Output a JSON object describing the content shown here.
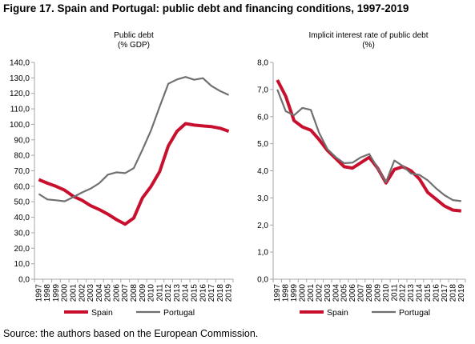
{
  "figure": {
    "title": "Figure 17. Spain and Portugal: public debt and financing conditions, 1997-2019",
    "source": "Source: the authors based on the European Commission."
  },
  "colors": {
    "spain": "#c8102e",
    "portugal": "#707070",
    "axis": "#a6a6a6"
  },
  "chart_data": [
    {
      "type": "line",
      "title": "Public debt",
      "subtitle": "(% GDP)",
      "xlabel": "",
      "ylabel": "",
      "ylim": [
        0,
        140
      ],
      "y_step": 10,
      "y_tick_labels": [
        "0,0",
        "10,0",
        "20,0",
        "30,0",
        "40,0",
        "50,0",
        "60,0",
        "70,0",
        "80,0",
        "90,0",
        "100,0",
        "110,0",
        "120,0",
        "130,0",
        "140,0"
      ],
      "grid": false,
      "legend": "bottom",
      "x": [
        "1997",
        "1998",
        "1999",
        "2000",
        "2001",
        "2002",
        "2003",
        "2004",
        "2005",
        "2006",
        "2007",
        "2008",
        "2009",
        "2010",
        "2011",
        "2012",
        "2013",
        "2014",
        "2015",
        "2016",
        "2017",
        "2018",
        "2019"
      ],
      "series": [
        {
          "name": "Spain",
          "color": "#c8102e",
          "values": [
            64.3,
            62.0,
            60.0,
            57.5,
            53.5,
            51.0,
            47.5,
            45.0,
            42.0,
            38.5,
            35.5,
            39.5,
            52.5,
            60.0,
            69.5,
            86.0,
            95.5,
            100.5,
            99.5,
            99.0,
            98.5,
            97.5,
            95.5
          ]
        },
        {
          "name": "Portugal",
          "color": "#707070",
          "values": [
            55.0,
            51.5,
            51.0,
            50.3,
            53.0,
            56.0,
            58.5,
            62.0,
            67.5,
            69.0,
            68.5,
            71.7,
            83.6,
            96.2,
            111.4,
            126.2,
            129.0,
            130.6,
            128.8,
            129.8,
            124.8,
            121.5,
            119.0
          ]
        }
      ]
    },
    {
      "type": "line",
      "title": "Implicit interest rate of  public debt",
      "subtitle": "(%)",
      "xlabel": "",
      "ylabel": "",
      "ylim": [
        0,
        8
      ],
      "y_step": 1,
      "y_tick_labels": [
        "0,0",
        "1,0",
        "2,0",
        "3,0",
        "4,0",
        "5,0",
        "6,0",
        "7,0",
        "8,0"
      ],
      "grid": false,
      "legend": "bottom",
      "x": [
        "1997",
        "1998",
        "1999",
        "2000",
        "2001",
        "2002",
        "2003",
        "2004",
        "2005",
        "2006",
        "2007",
        "2008",
        "2009",
        "2010",
        "2011",
        "2012",
        "2013",
        "2014",
        "2015",
        "2016",
        "2017",
        "2018",
        "2019"
      ],
      "series": [
        {
          "name": "Spain",
          "color": "#c8102e",
          "values": [
            7.35,
            6.75,
            5.85,
            5.62,
            5.5,
            5.15,
            4.75,
            4.45,
            4.15,
            4.1,
            4.3,
            4.5,
            4.1,
            3.55,
            4.05,
            4.15,
            4.0,
            3.7,
            3.2,
            2.95,
            2.7,
            2.55,
            2.52
          ]
        },
        {
          "name": "Portugal",
          "color": "#707070",
          "values": [
            7.0,
            6.2,
            6.05,
            6.32,
            6.25,
            5.4,
            4.8,
            4.5,
            4.28,
            4.3,
            4.5,
            4.62,
            4.1,
            3.58,
            4.38,
            4.18,
            3.9,
            3.85,
            3.65,
            3.35,
            3.1,
            2.92,
            2.88
          ]
        }
      ]
    }
  ]
}
